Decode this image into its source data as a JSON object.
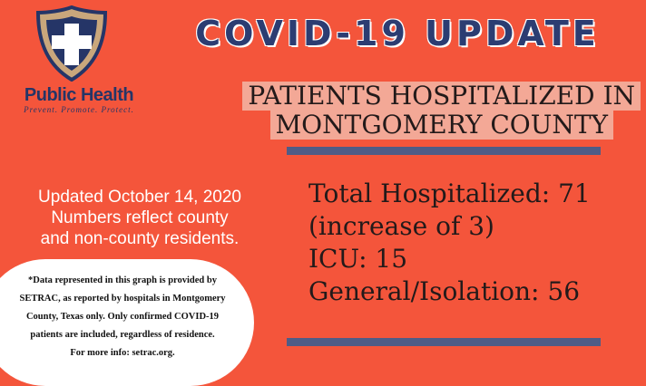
{
  "logo": {
    "icon": "cross-shield-icon",
    "org_name": "Public Health",
    "tagline": "Prevent. Promote. Protect."
  },
  "headline": "COVID-19 UPDATE",
  "subheading": {
    "line1": "PATIENTS HOSPITALIZED IN",
    "line2": "MONTGOMERY COUNTY"
  },
  "updated": {
    "line1": "Updated October 14, 2020",
    "line2": "Numbers reflect county",
    "line3": "and non-county residents."
  },
  "stats": {
    "total": "Total Hospitalized: 71",
    "increase": "(increase of 3)",
    "icu": "ICU: 15",
    "general": "General/Isolation: 56"
  },
  "note": {
    "line1": "*Data represented in this graph is provided by",
    "line2": "SETRAC, as reported by hospitals in Montgomery",
    "line3": "County, Texas only. Only confirmed COVID-19",
    "line4": "patients are included, regardless of residence.",
    "line5": "For more info: setrac.org."
  },
  "colors": {
    "background": "#f4553b",
    "navy": "#2c3d72",
    "banner": "#f3a896",
    "bar": "#4f5c86"
  }
}
